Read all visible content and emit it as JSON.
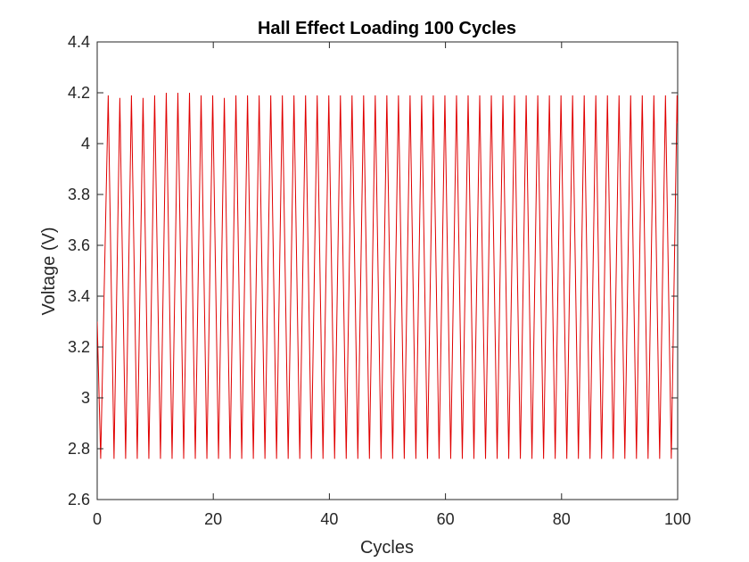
{
  "chart_data": {
    "type": "line",
    "title": "Hall Effect Loading 100 Cycles",
    "xlabel": "Cycles",
    "ylabel": "Voltage (V)",
    "xlim": [
      0,
      100
    ],
    "ylim": [
      2.6,
      4.4
    ],
    "xticks": [
      0,
      20,
      40,
      60,
      80,
      100
    ],
    "yticks": [
      2.6,
      2.8,
      3.0,
      3.2,
      3.4,
      3.6,
      3.8,
      4.0,
      4.2,
      4.4
    ],
    "xtick_labels": [
      "0",
      "20",
      "40",
      "60",
      "80",
      "100"
    ],
    "ytick_labels": [
      "2.6",
      "2.8",
      "3",
      "3.2",
      "3.4",
      "3.6",
      "3.8",
      "4",
      "4.2",
      "4.4"
    ],
    "grid": false,
    "series": [
      {
        "color": "#e00000",
        "description_period_cycles": 2,
        "x": [
          0,
          0.6,
          1.9,
          2.9,
          3.9,
          4.9,
          5.9,
          6.9,
          7.9,
          8.9,
          9.9,
          10.9,
          11.9,
          12.9,
          13.9,
          14.9,
          15.9,
          16.9,
          17.9,
          18.9,
          19.9,
          20.9,
          21.9,
          22.9,
          23.9,
          24.9,
          25.9,
          26.9,
          27.9,
          28.9,
          29.9,
          30.9,
          31.9,
          32.9,
          33.9,
          34.9,
          35.9,
          36.9,
          37.9,
          38.9,
          39.9,
          40.9,
          41.9,
          42.9,
          43.9,
          44.9,
          45.9,
          46.9,
          47.9,
          48.9,
          49.9,
          50.9,
          51.9,
          52.9,
          53.9,
          54.9,
          55.9,
          56.9,
          57.9,
          58.9,
          59.9,
          60.9,
          61.9,
          62.9,
          63.9,
          64.9,
          65.9,
          66.9,
          67.9,
          68.9,
          69.9,
          70.9,
          71.9,
          72.9,
          73.9,
          74.9,
          75.9,
          76.9,
          77.9,
          78.9,
          79.9,
          80.9,
          81.9,
          82.9,
          83.9,
          84.9,
          85.9,
          86.9,
          87.9,
          88.9,
          89.9,
          90.9,
          91.9,
          92.9,
          93.9,
          94.9,
          95.9,
          96.9,
          97.9,
          98.9,
          99.9,
          100
        ],
        "y": [
          3.3,
          2.76,
          4.19,
          2.76,
          4.18,
          2.76,
          4.19,
          2.76,
          4.18,
          2.76,
          4.19,
          2.76,
          4.2,
          2.76,
          4.2,
          2.76,
          4.2,
          2.76,
          4.19,
          2.76,
          4.19,
          2.76,
          4.18,
          2.76,
          4.19,
          2.76,
          4.19,
          2.76,
          4.19,
          2.76,
          4.19,
          2.76,
          4.19,
          2.76,
          4.19,
          2.76,
          4.19,
          2.76,
          4.19,
          2.76,
          4.19,
          2.76,
          4.19,
          2.76,
          4.19,
          2.76,
          4.19,
          2.76,
          4.19,
          2.76,
          4.19,
          2.76,
          4.19,
          2.76,
          4.19,
          2.76,
          4.19,
          2.76,
          4.19,
          2.76,
          4.19,
          2.76,
          4.19,
          2.76,
          4.19,
          2.76,
          4.19,
          2.76,
          4.19,
          2.76,
          4.19,
          2.76,
          4.19,
          2.76,
          4.19,
          2.76,
          4.19,
          2.76,
          4.19,
          2.76,
          4.19,
          2.76,
          4.19,
          2.76,
          4.19,
          2.76,
          4.19,
          2.76,
          4.19,
          2.76,
          4.19,
          2.76,
          4.19,
          2.76,
          4.19,
          2.76,
          4.19,
          2.76,
          4.19,
          2.76,
          4.19,
          4.08
        ]
      }
    ]
  }
}
